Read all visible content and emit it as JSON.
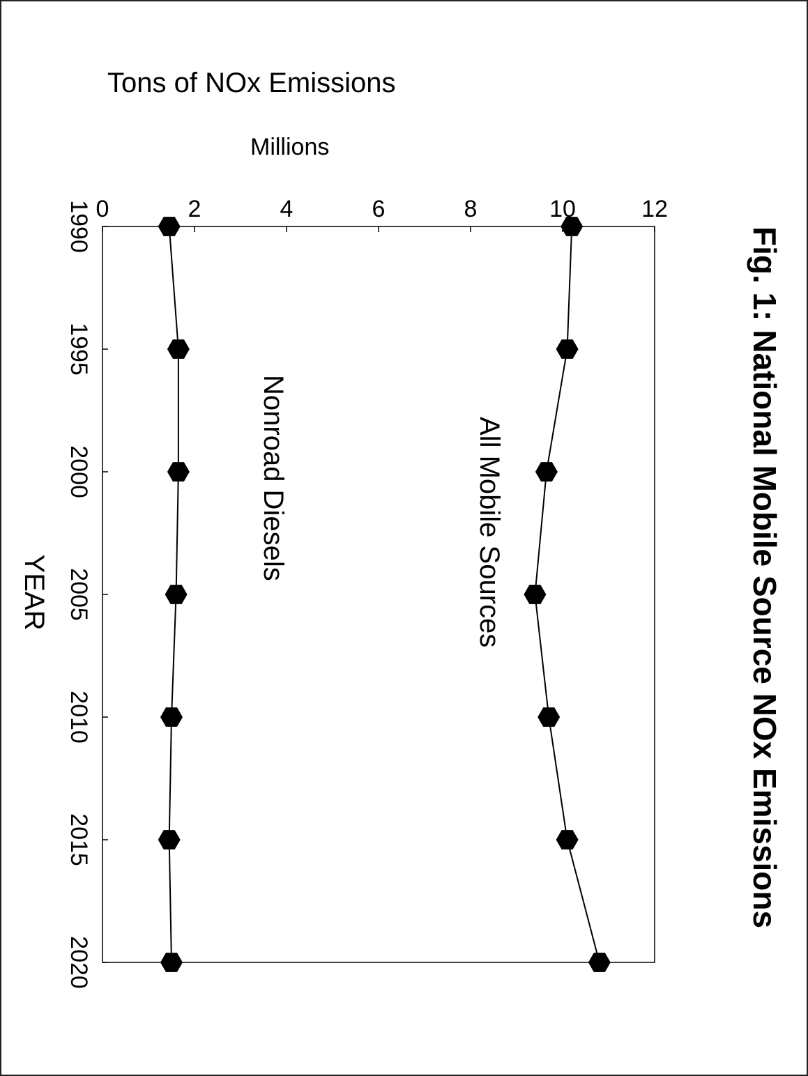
{
  "chart_data": {
    "type": "line",
    "title": "Fig. 1: National Mobile Source NOx Emissions",
    "ylabel": "Tons of NOx Emissions",
    "yunit": "Millions",
    "xlabel": "YEAR",
    "x": [
      1990,
      1995,
      2000,
      2005,
      2010,
      2015,
      2020
    ],
    "xticks": [
      "1990",
      "1995",
      "2000",
      "2005",
      "2010",
      "2015",
      "2020"
    ],
    "yticks": [
      "0",
      "2",
      "4",
      "6",
      "8",
      "10",
      "12"
    ],
    "xlim": [
      1990,
      2020
    ],
    "ylim": [
      0,
      12
    ],
    "grid": false,
    "series": [
      {
        "name": "All Mobile Sources",
        "values": [
          10.2,
          10.1,
          9.65,
          9.4,
          9.7,
          10.1,
          10.8
        ]
      },
      {
        "name": "Nonroad Diesels",
        "values": [
          1.45,
          1.65,
          1.65,
          1.6,
          1.5,
          1.45,
          1.5
        ]
      }
    ]
  }
}
